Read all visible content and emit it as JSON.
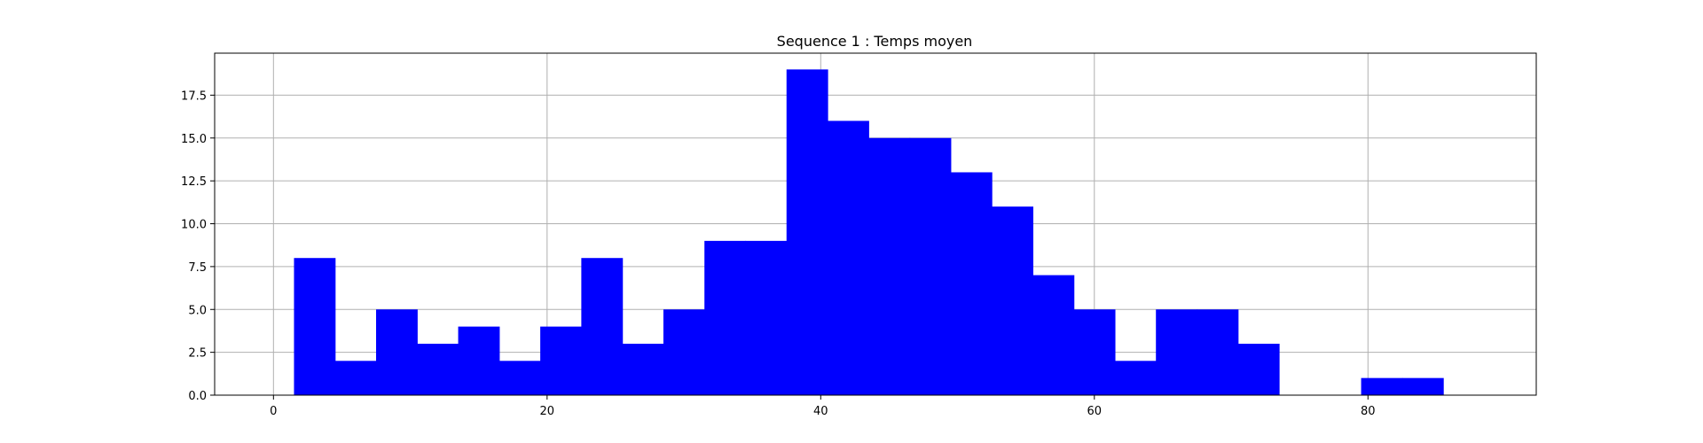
{
  "chart_data": {
    "type": "bar",
    "title": "Sequence 1 : Temps moyen",
    "xlabel": "",
    "ylabel": "",
    "xlim": [
      -4.3,
      92.3
    ],
    "ylim": [
      0,
      19.95
    ],
    "x_ticks": [
      0,
      20,
      40,
      60,
      80
    ],
    "y_ticks": [
      0.0,
      2.5,
      5.0,
      7.5,
      10.0,
      12.5,
      15.0,
      17.5
    ],
    "x_tick_labels": [
      "0",
      "20",
      "40",
      "60",
      "80"
    ],
    "y_tick_labels": [
      "0.0",
      "2.5",
      "5.0",
      "7.5",
      "10.0",
      "12.5",
      "15.0",
      "17.5"
    ],
    "grid": true,
    "bar_color": "#0000ff",
    "bin_edges": [
      1.5,
      4.5,
      7.5,
      10.5,
      13.5,
      16.5,
      19.5,
      22.5,
      25.5,
      28.5,
      31.5,
      34.5,
      37.5,
      40.5,
      43.5,
      46.5,
      49.5,
      52.5,
      55.5,
      58.5,
      61.5,
      64.5,
      67.5,
      70.5,
      73.5,
      76.5,
      79.5,
      82.5,
      85.5
    ],
    "values": [
      8,
      2,
      5,
      3,
      4,
      2,
      4,
      8,
      3,
      5,
      9,
      9,
      19,
      16,
      15,
      15,
      13,
      11,
      7,
      5,
      2,
      5,
      5,
      3,
      0,
      0,
      1,
      1
    ]
  }
}
